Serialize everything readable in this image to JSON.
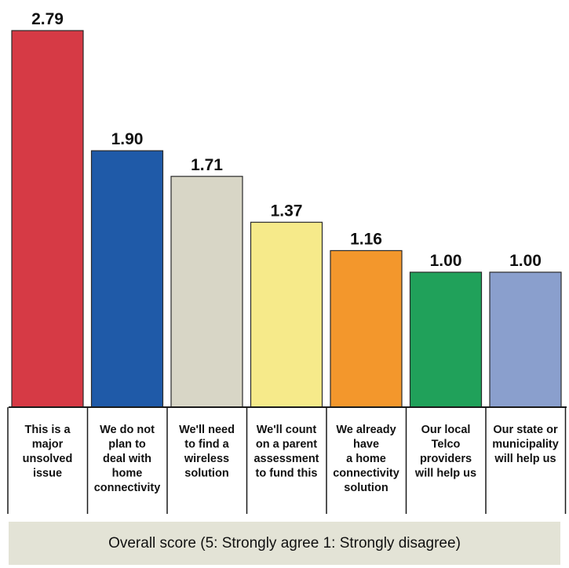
{
  "chart_data": {
    "type": "bar",
    "categories": [
      [
        "This is a",
        "major",
        "unsolved",
        "issue"
      ],
      [
        "We do not",
        "plan to",
        "deal with",
        "home",
        "connectivity"
      ],
      [
        "We'll need",
        "to find a",
        "wireless",
        "solution"
      ],
      [
        "We'll count",
        "on a parent",
        "assessment",
        "to fund this"
      ],
      [
        "We already",
        "have",
        "a home",
        "connectivity",
        "solution"
      ],
      [
        "Our local",
        "Telco",
        "providers",
        "will help us"
      ],
      [
        "Our state or",
        "municipality",
        "will help us"
      ]
    ],
    "values": [
      2.79,
      1.9,
      1.71,
      1.37,
      1.16,
      1.0,
      1.0
    ],
    "value_labels": [
      "2.79",
      "1.90",
      "1.71",
      "1.37",
      "1.16",
      "1.00",
      "1.00"
    ],
    "colors": [
      "#d63a45",
      "#1f5aa8",
      "#d8d6c6",
      "#f6ea8a",
      "#f3972c",
      "#20a15a",
      "#8a9fcd"
    ],
    "xlabel": "Overall score (5: Strongly agree 1: Strongly disagree)",
    "ylim": [
      0,
      2.79
    ],
    "grid": false,
    "legend": "none"
  }
}
